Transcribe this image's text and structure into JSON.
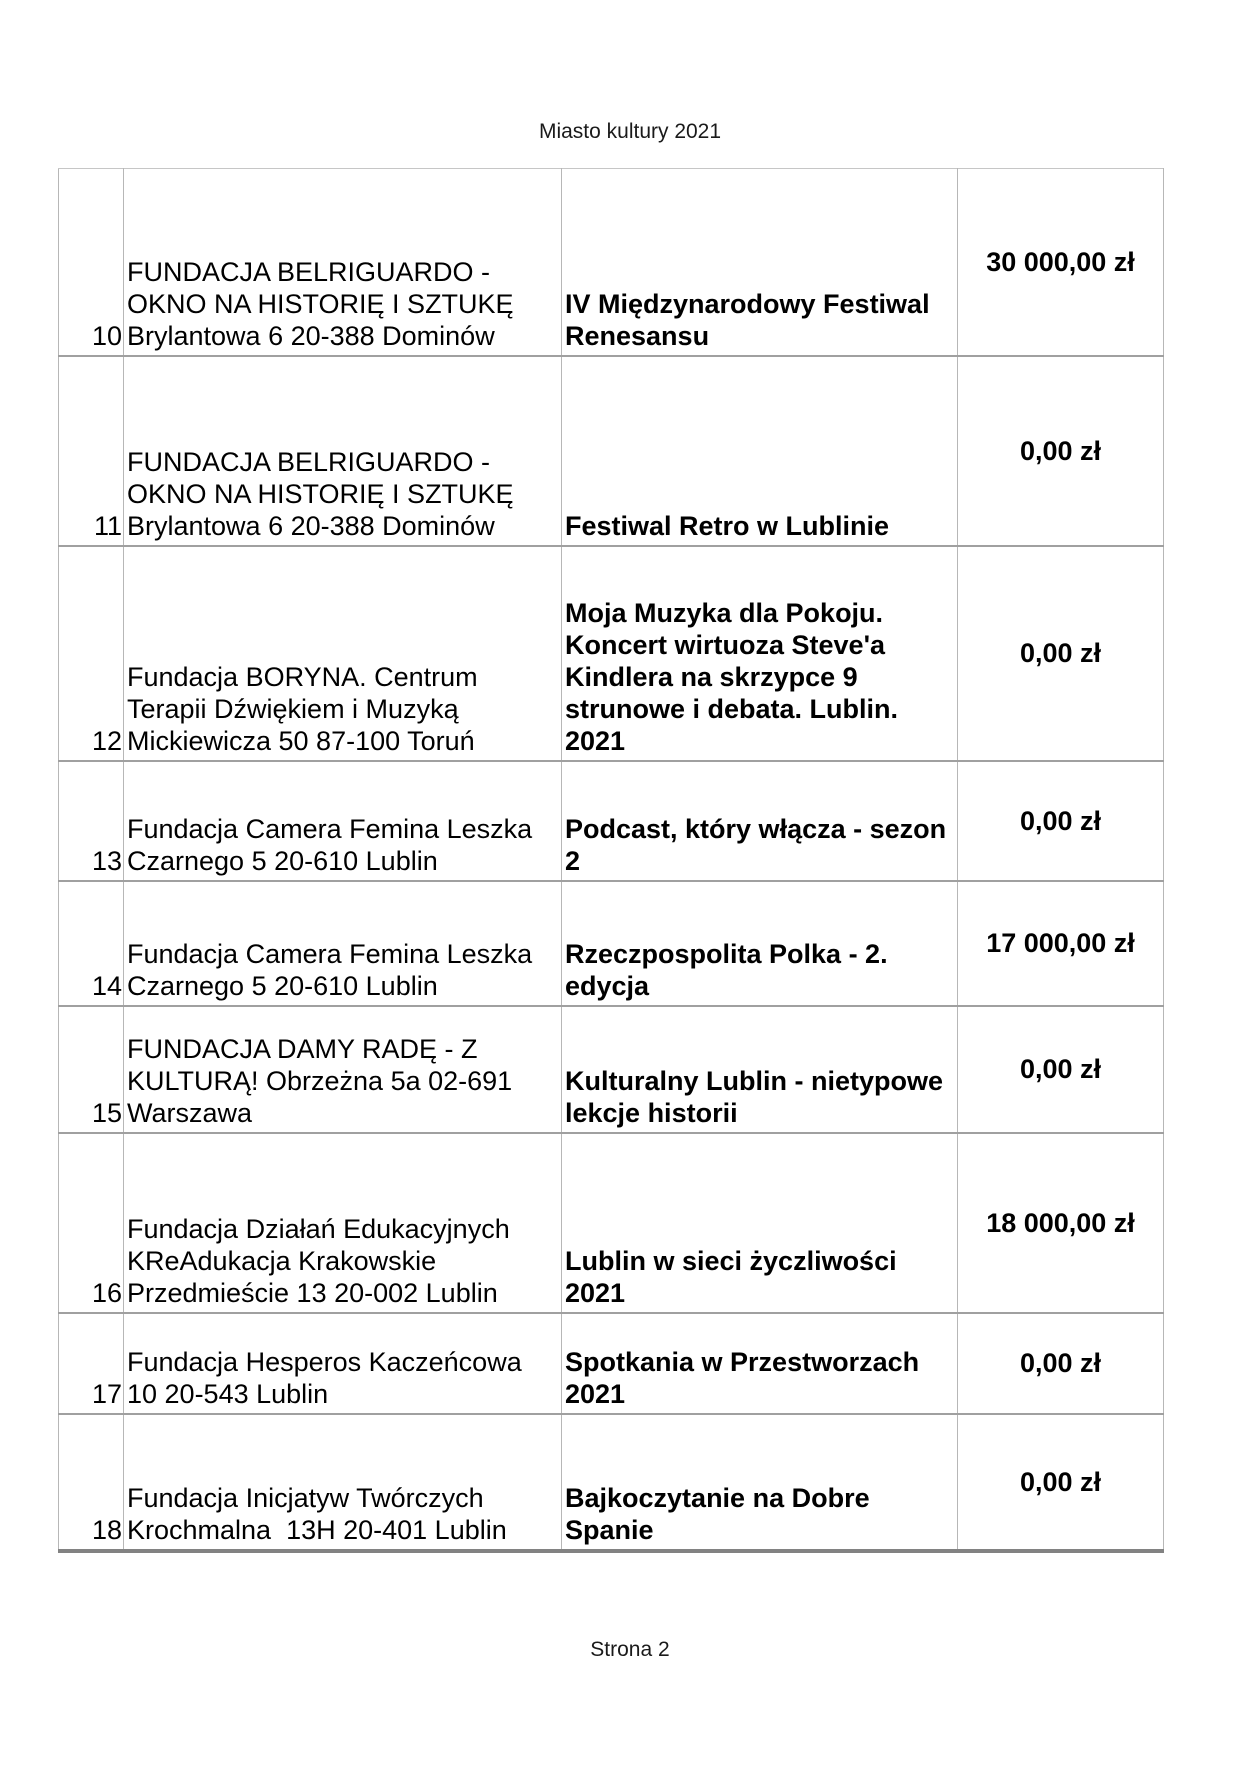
{
  "page": {
    "title": "Miasto kultury 2021",
    "footer": "Strona 2"
  },
  "table": {
    "rows": [
      {
        "num": "10",
        "org": "FUNDACJA BELRIGUARDO -\nOKNO NA HISTORIĘ I SZTUKĘ\nBrylantowa 6 20-388 Dominów",
        "project": "IV Międzynarodowy Festiwal\nRenesansu",
        "amount": "30 000,00 zł"
      },
      {
        "num": "11",
        "org": "FUNDACJA BELRIGUARDO -\nOKNO NA HISTORIĘ I SZTUKĘ\nBrylantowa 6 20-388 Dominów",
        "project": "Festiwal Retro w Lublinie",
        "amount": "0,00 zł"
      },
      {
        "num": "12",
        "org": "Fundacja BORYNA. Centrum\nTerapii Dźwiękiem i Muzyką\nMickiewicza 50 87-100 Toruń",
        "project": "Moja Muzyka dla Pokoju.\nKoncert wirtuoza Steve'a\nKindlera na skrzypce 9\nstrunowe i debata. Lublin.\n2021",
        "amount": "0,00 zł"
      },
      {
        "num": "13",
        "org": "Fundacja Camera Femina Leszka\nCzarnego 5 20-610 Lublin",
        "project": "Podcast, który włącza - sezon\n2",
        "amount": "0,00 zł"
      },
      {
        "num": "14",
        "org": "Fundacja Camera Femina Leszka\nCzarnego 5 20-610 Lublin",
        "project": "Rzeczpospolita Polka - 2.\nedycja",
        "amount": "17 000,00 zł"
      },
      {
        "num": "15",
        "org": "FUNDACJA DAMY RADĘ - Z\nKULTURĄ! Obrzeżna 5a 02-691\nWarszawa",
        "project": "Kulturalny Lublin - nietypowe\nlekcje historii",
        "amount": "0,00 zł"
      },
      {
        "num": "16",
        "org": "Fundacja Działań Edukacyjnych\nKReAdukacja Krakowskie\nPrzedmieście 13 20-002 Lublin",
        "project": "Lublin w sieci życzliwości\n2021",
        "amount": "18 000,00 zł"
      },
      {
        "num": "17",
        "org": "Fundacja Hesperos Kaczeńcowa\n10 20-543 Lublin",
        "project": "Spotkania w Przestworzach\n2021",
        "amount": "0,00 zł"
      },
      {
        "num": "18",
        "org": "Fundacja Inicjatyw Twórczych\nKrochmalna  13H 20-401 Lublin",
        "project": "Bajkoczytanie na Dobre\nSpanie",
        "amount": "0,00 zł"
      }
    ]
  }
}
